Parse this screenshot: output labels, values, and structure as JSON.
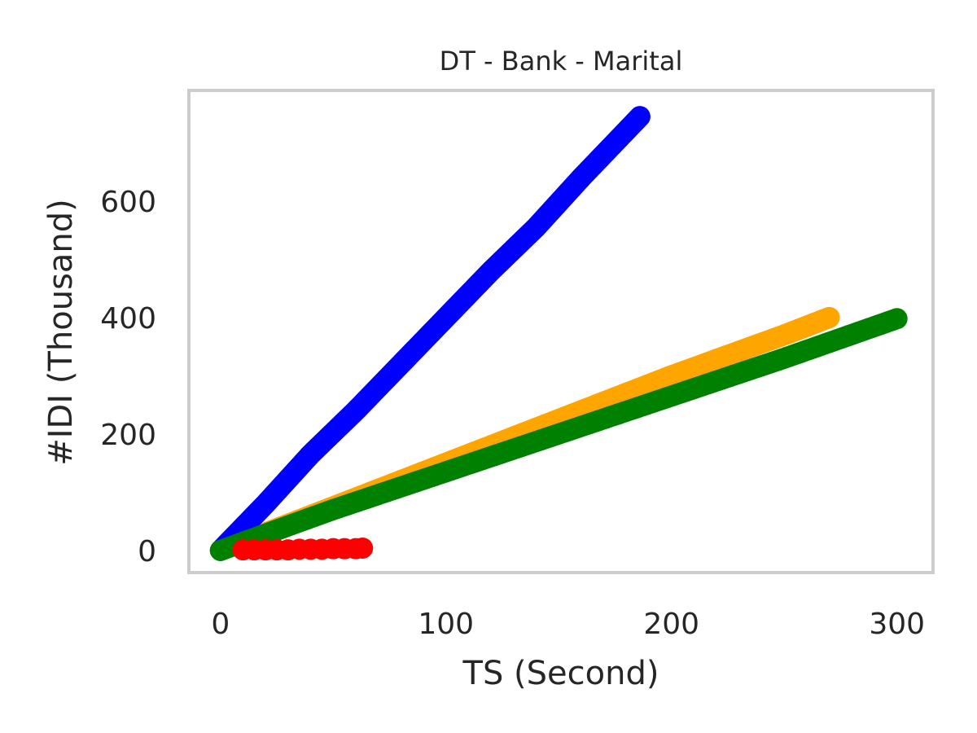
{
  "chart_data": {
    "type": "scatter",
    "title": "DT - Bank - Marital",
    "xlabel": "TS (Second)",
    "ylabel": "#IDI (Thousand)",
    "xlim": [
      -14,
      316
    ],
    "ylim": [
      -38,
      790
    ],
    "xticks": [
      0,
      100,
      200,
      300
    ],
    "yticks": [
      0,
      200,
      400,
      600
    ],
    "grid": false,
    "series": [
      {
        "color": "#ffa500",
        "marker_dense": true,
        "x": [
          0,
          50,
          100,
          150,
          200,
          250,
          270
        ],
        "y": [
          0,
          75,
          150,
          225,
          300,
          370,
          400
        ]
      },
      {
        "color": "#0000ff",
        "marker_dense": true,
        "x": [
          0,
          20,
          40,
          60,
          80,
          100,
          120,
          140,
          160,
          186
        ],
        "y": [
          0,
          80,
          165,
          240,
          320,
          400,
          480,
          555,
          640,
          745
        ]
      },
      {
        "color": "#008000",
        "marker_dense": true,
        "x": [
          0,
          50,
          100,
          150,
          200,
          250,
          300
        ],
        "y": [
          0,
          70,
          135,
          200,
          265,
          330,
          398
        ]
      },
      {
        "color": "#ff0000",
        "marker_dense": false,
        "x": [
          10,
          15,
          20,
          25,
          30,
          35,
          40,
          45,
          50,
          55,
          60,
          63
        ],
        "y": [
          1,
          1,
          1,
          1,
          1,
          2,
          2,
          2,
          3,
          3,
          3,
          4
        ]
      }
    ]
  }
}
